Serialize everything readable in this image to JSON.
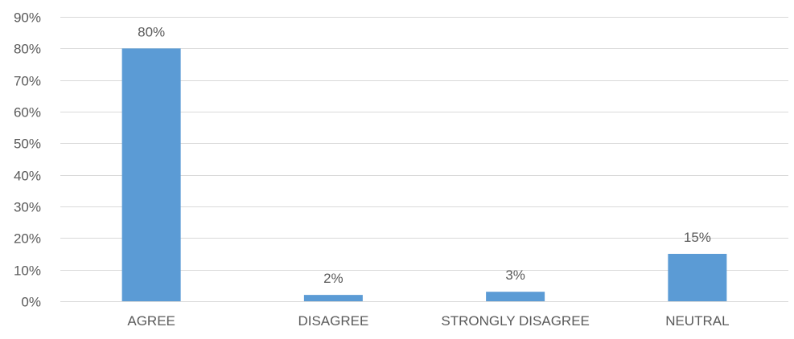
{
  "chart_data": {
    "type": "bar",
    "title": "",
    "xlabel": "",
    "ylabel": "",
    "categories": [
      "AGREE",
      "DISAGREE",
      "STRONGLY DISAGREE",
      "NEUTRAL"
    ],
    "values": [
      80,
      2,
      3,
      15
    ],
    "data_labels": [
      "80%",
      "2%",
      "3%",
      "15%"
    ],
    "y_ticks": [
      0,
      10,
      20,
      30,
      40,
      50,
      60,
      70,
      80,
      90
    ],
    "y_tick_labels": [
      "0%",
      "10%",
      "20%",
      "30%",
      "40%",
      "50%",
      "60%",
      "70%",
      "80%",
      "90%"
    ],
    "ylim": [
      0,
      90
    ],
    "grid": true,
    "legend": "none",
    "bar_color": "#5b9bd5"
  }
}
